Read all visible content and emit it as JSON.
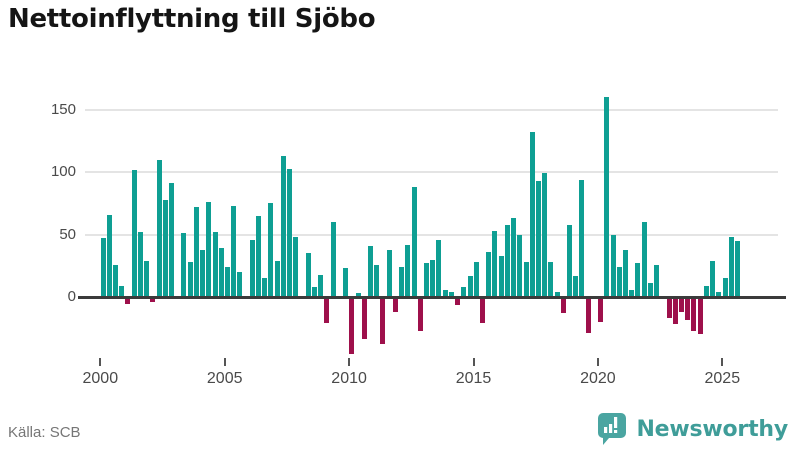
{
  "header": {
    "title": "Nettoinflyttning till Sjöbo"
  },
  "footer": {
    "source": "Källa: SCB",
    "brand": "Newsworthy"
  },
  "colors": {
    "positive": "#0e9f93",
    "negative": "#9e104b",
    "brand_teal": "#3f9d99",
    "axis_text": "#4a4a4a",
    "grid": "#e4e4e4",
    "zero_line": "#3b3b3b"
  },
  "chart_data": {
    "type": "bar",
    "title": "Nettoinflyttning till Sjöbo",
    "xlabel": "",
    "ylabel": "",
    "y_ticks": [
      0,
      50,
      100,
      150
    ],
    "x_ticks": [
      2000,
      2005,
      2010,
      2015,
      2020,
      2025
    ],
    "ylim": [
      -50,
      170
    ],
    "grid": true,
    "legend": false,
    "x": [
      "2000Q1",
      "2000Q2",
      "2000Q3",
      "2000Q4",
      "2001Q1",
      "2001Q2",
      "2001Q3",
      "2001Q4",
      "2002Q1",
      "2002Q2",
      "2002Q3",
      "2002Q4",
      "2003Q1",
      "2003Q2",
      "2003Q3",
      "2003Q4",
      "2004Q1",
      "2004Q2",
      "2004Q3",
      "2004Q4",
      "2005Q1",
      "2005Q2",
      "2005Q3",
      "2005Q4",
      "2006Q1",
      "2006Q2",
      "2006Q3",
      "2006Q4",
      "2007Q1",
      "2007Q2",
      "2007Q3",
      "2007Q4",
      "2008Q1",
      "2008Q2",
      "2008Q3",
      "2008Q4",
      "2009Q1",
      "2009Q2",
      "2009Q3",
      "2009Q4",
      "2010Q1",
      "2010Q2",
      "2010Q3",
      "2010Q4",
      "2011Q1",
      "2011Q2",
      "2011Q3",
      "2011Q4",
      "2012Q1",
      "2012Q2",
      "2012Q3",
      "2012Q4",
      "2013Q1",
      "2013Q2",
      "2013Q3",
      "2013Q4",
      "2014Q1",
      "2014Q2",
      "2014Q3",
      "2014Q4",
      "2015Q1",
      "2015Q2",
      "2015Q3",
      "2015Q4",
      "2016Q1",
      "2016Q2",
      "2016Q3",
      "2016Q4",
      "2017Q1",
      "2017Q2",
      "2017Q3",
      "2017Q4",
      "2018Q1",
      "2018Q2",
      "2018Q3",
      "2018Q4",
      "2019Q1",
      "2019Q2",
      "2019Q3",
      "2019Q4",
      "2020Q1",
      "2020Q2",
      "2020Q3",
      "2020Q4",
      "2021Q1",
      "2021Q2",
      "2021Q3",
      "2021Q4",
      "2022Q1",
      "2022Q2",
      "2022Q3",
      "2022Q4",
      "2023Q1",
      "2023Q2",
      "2023Q3",
      "2023Q4",
      "2024Q1",
      "2024Q2",
      "2024Q3",
      "2024Q4",
      "2025Q1",
      "2025Q2",
      "2025Q3"
    ],
    "values": [
      47,
      66,
      26,
      9,
      -4,
      102,
      52,
      29,
      -2,
      110,
      78,
      91,
      0,
      51,
      28,
      72,
      38,
      76,
      52,
      39,
      24,
      73,
      20,
      0,
      46,
      65,
      15,
      75,
      29,
      113,
      103,
      48,
      0,
      35,
      8,
      18,
      -19,
      60,
      0,
      23,
      -44,
      3,
      -32,
      41,
      26,
      -36,
      38,
      -10,
      24,
      42,
      88,
      -26,
      27,
      30,
      46,
      6,
      4,
      -5,
      8,
      17,
      28,
      -19,
      36,
      53,
      33,
      58,
      63,
      50,
      28,
      132,
      93,
      99,
      28,
      4,
      -11,
      58,
      17,
      94,
      -27,
      0,
      -18,
      160,
      50,
      24,
      38,
      6,
      27,
      60,
      11,
      26,
      0,
      -15,
      -20,
      -10,
      -17,
      -26,
      -28,
      9,
      29,
      4,
      15,
      48,
      45
    ]
  }
}
